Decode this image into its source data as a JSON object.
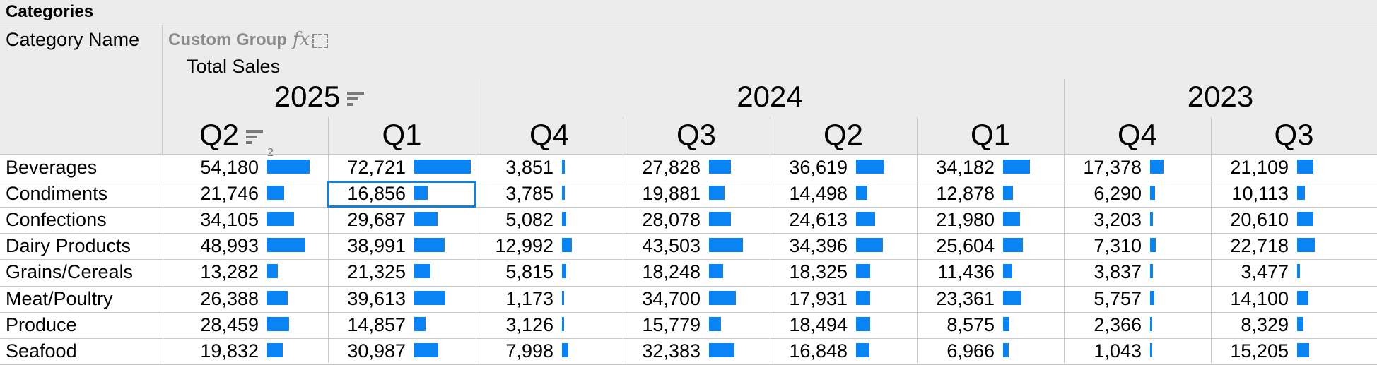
{
  "header": {
    "title": "Categories",
    "row_field": "Category Name",
    "custom_group": "Custom Group",
    "fx_label": "fx",
    "measure": "Total Sales"
  },
  "years": [
    {
      "label": "2025",
      "sorted": true
    },
    {
      "label": "2024",
      "sorted": false
    },
    {
      "label": "2023",
      "sorted": false
    }
  ],
  "quarters": [
    {
      "label": "Q2",
      "sorted": true,
      "sort_order": "2"
    },
    {
      "label": "Q1",
      "sorted": false
    },
    {
      "label": "Q4",
      "sorted": false
    },
    {
      "label": "Q3",
      "sorted": false
    },
    {
      "label": "Q2",
      "sorted": false
    },
    {
      "label": "Q1",
      "sorted": false
    },
    {
      "label": "Q4",
      "sorted": false
    },
    {
      "label": "Q3",
      "sorted": false
    }
  ],
  "rows": [
    {
      "label": "Beverages",
      "values": [
        "54,180",
        "72,721",
        "3,851",
        "27,828",
        "36,619",
        "34,182",
        "17,378",
        "21,109"
      ]
    },
    {
      "label": "Condiments",
      "values": [
        "21,746",
        "16,856",
        "3,785",
        "19,881",
        "14,498",
        "12,878",
        "6,290",
        "10,113"
      ]
    },
    {
      "label": "Confections",
      "values": [
        "34,105",
        "29,687",
        "5,082",
        "28,078",
        "24,613",
        "21,980",
        "3,203",
        "20,610"
      ]
    },
    {
      "label": "Dairy Products",
      "values": [
        "48,993",
        "38,991",
        "12,992",
        "43,503",
        "34,396",
        "25,604",
        "7,310",
        "22,718"
      ]
    },
    {
      "label": "Grains/Cereals",
      "values": [
        "13,282",
        "21,325",
        "5,815",
        "18,248",
        "18,325",
        "11,436",
        "3,837",
        "3,477"
      ]
    },
    {
      "label": "Meat/Poultry",
      "values": [
        "26,388",
        "39,613",
        "1,173",
        "34,700",
        "17,931",
        "23,361",
        "5,757",
        "14,100"
      ]
    },
    {
      "label": "Produce",
      "values": [
        "28,459",
        "14,857",
        "3,126",
        "15,779",
        "18,494",
        "8,575",
        "2,366",
        "8,329"
      ]
    },
    {
      "label": "Seafood",
      "values": [
        "19,832",
        "30,987",
        "7,998",
        "32,383",
        "16,848",
        "6,966",
        "1,043",
        "15,205"
      ]
    }
  ],
  "bar_max": 72721,
  "selected_cell": {
    "row": 1,
    "col": 1
  },
  "colors": {
    "bar": "#0a84f5",
    "header_bg": "#ececec",
    "selection": "#1680d8"
  },
  "icons": [
    "sort-descending-icon",
    "fx-icon",
    "dashed-box-icon"
  ]
}
